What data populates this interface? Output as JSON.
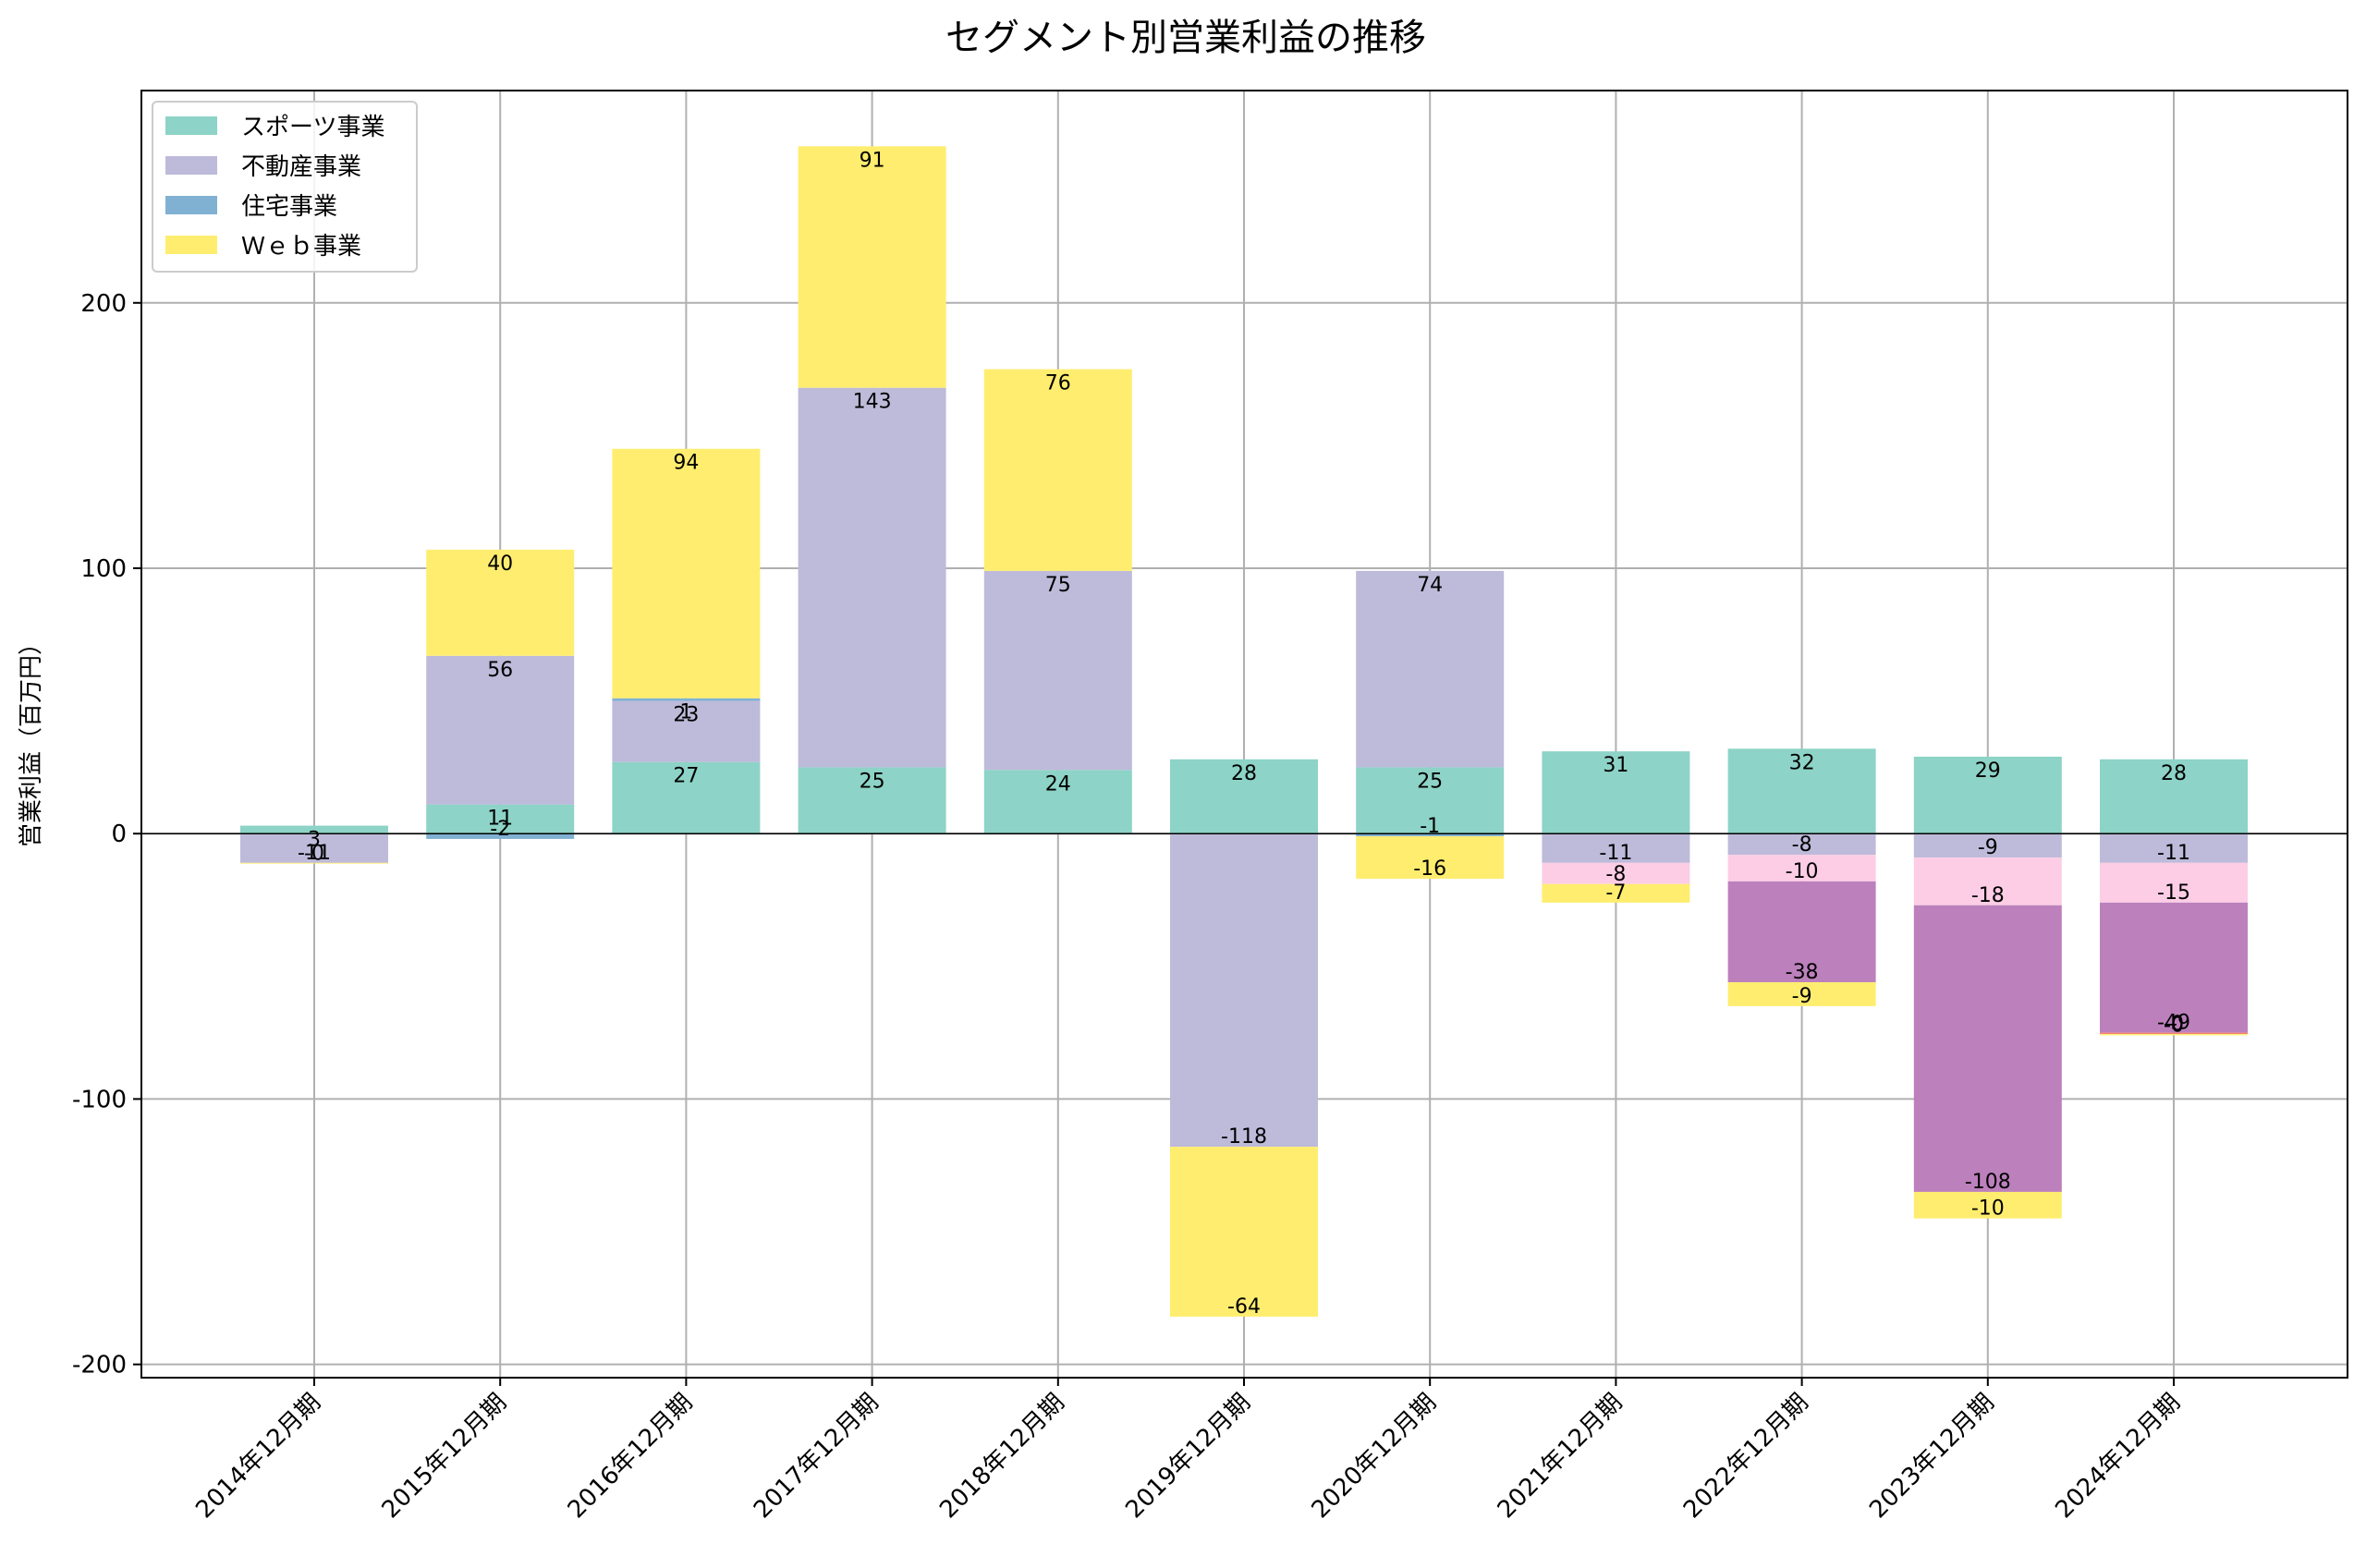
{
  "chart_data": {
    "type": "bar",
    "stacked": true,
    "title": "セグメント別営業利益の推移",
    "xlabel": "",
    "ylabel": "営業利益（百万円）",
    "ylim": [
      -205,
      280
    ],
    "yticks": [
      -200,
      -100,
      0,
      100,
      200
    ],
    "grid": true,
    "legend_position": "top-left",
    "categories": [
      "2014年12月期",
      "2015年12月期",
      "2016年12月期",
      "2017年12月期",
      "2018年12月期",
      "2019年12月期",
      "2020年12月期",
      "2021年12月期",
      "2022年12月期",
      "2023年12月期",
      "2024年12月期"
    ],
    "series": [
      {
        "name": "スポーツ事業",
        "color": "#8dd3c7",
        "values": [
          3,
          11,
          27,
          25,
          24,
          28,
          25,
          31,
          32,
          29,
          28
        ]
      },
      {
        "name": "不動産事業",
        "color": "#bebada",
        "values": [
          -11,
          56,
          23,
          143,
          75,
          -118,
          74,
          -11,
          -8,
          -9,
          -11
        ]
      },
      {
        "name": "住宅事業",
        "color": "#80b1d3",
        "values": [
          null,
          -2,
          1,
          null,
          null,
          null,
          -1,
          null,
          null,
          null,
          null
        ]
      },
      {
        "name": "",
        "color": "#fccde5",
        "values": [
          null,
          null,
          null,
          null,
          null,
          null,
          null,
          -8,
          -10,
          -18,
          -15
        ]
      },
      {
        "name": "",
        "color": "#bc80bd",
        "values": [
          null,
          null,
          null,
          null,
          null,
          null,
          null,
          null,
          -38,
          -108,
          -49
        ]
      },
      {
        "name": "",
        "color": "#f37f72",
        "values": [
          null,
          null,
          null,
          null,
          null,
          null,
          null,
          null,
          null,
          null,
          -0.5
        ]
      },
      {
        "name": "Ｗｅｂ事業",
        "color": "#ffed6f",
        "values": [
          -0.3,
          40,
          94,
          91,
          76,
          -64,
          -16,
          -7,
          -9,
          -10,
          -0.5
        ]
      }
    ],
    "data_labels": [
      [
        "3",
        "-11",
        null,
        null,
        null,
        null,
        "-0"
      ],
      [
        "11",
        "56",
        "-2",
        null,
        null,
        null,
        "40"
      ],
      [
        "27",
        "23",
        "1",
        null,
        null,
        null,
        "94"
      ],
      [
        "25",
        "143",
        null,
        null,
        null,
        null,
        "91"
      ],
      [
        "24",
        "75",
        null,
        null,
        null,
        null,
        "76"
      ],
      [
        "28",
        "-118",
        null,
        null,
        null,
        null,
        "-64"
      ],
      [
        "25",
        "74",
        "-1",
        null,
        null,
        null,
        "-16"
      ],
      [
        "31",
        "-11",
        null,
        "-8",
        null,
        null,
        "-7"
      ],
      [
        "32",
        "-8",
        null,
        "-10",
        "-38",
        null,
        "-9"
      ],
      [
        "29",
        "-9",
        null,
        "-18",
        "-108",
        null,
        "-10"
      ],
      [
        "28",
        "-11",
        null,
        "-15",
        "-49",
        "-0",
        "-0"
      ]
    ]
  }
}
